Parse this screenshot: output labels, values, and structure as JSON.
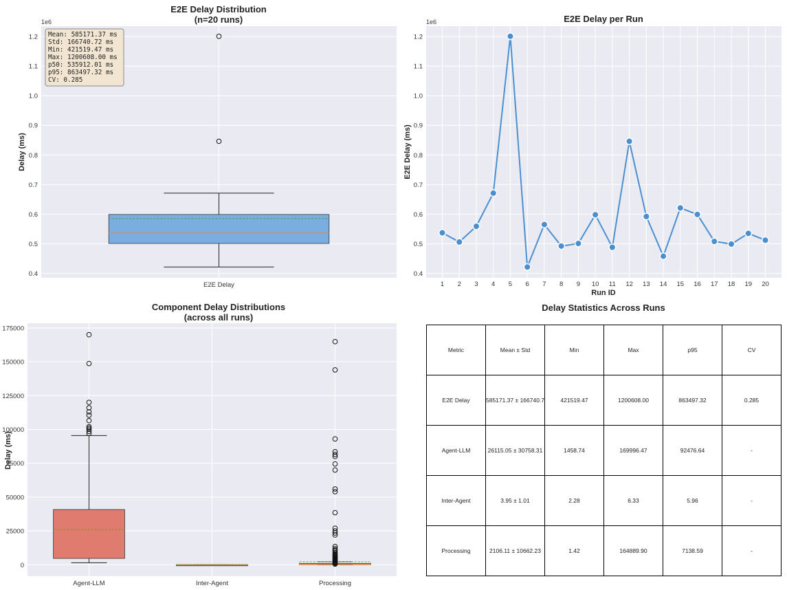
{
  "colors": {
    "plot_bg": "#eaeaf2",
    "grid": "#ffffff",
    "e2e_box": "#7aaee0",
    "llm_box": "#e07b6f",
    "median": "#e08a3c",
    "mean": "#5a9a4a",
    "line": "#4a90d0",
    "stats_box": "#f2e6d3"
  },
  "chart_data": [
    {
      "type": "box",
      "title": "E2E Delay Distribution",
      "subtitle": "(n=20 runs)",
      "ylabel": "Delay (ms)",
      "xlabel": "",
      "offset_label": "1e6",
      "ylim": [
        0.385,
        1.235
      ],
      "yticks": [
        0.4,
        0.5,
        0.6,
        0.7,
        0.8,
        0.9,
        1.0,
        1.1,
        1.2
      ],
      "ytick_labels": [
        "0.4",
        "0.5",
        "0.6",
        "0.7",
        "0.8",
        "0.9",
        "1.0",
        "1.1",
        "1.2"
      ],
      "categories": [
        "E2E Delay"
      ],
      "boxes": [
        {
          "name": "E2E Delay",
          "whisker_low": 0.4215,
          "q1": 0.501,
          "median": 0.536,
          "mean": 0.585,
          "q3": 0.599,
          "whisker_high": 0.671,
          "outliers": [
            0.846,
            1.2006
          ]
        }
      ],
      "stats_text": [
        "Mean: 585171.37 ms",
        "Std: 166740.72 ms",
        "Min: 421519.47 ms",
        "Max: 1200608.00 ms",
        "p50: 535912.01 ms",
        "p95: 863497.32 ms",
        "CV: 0.285"
      ]
    },
    {
      "type": "line",
      "title": "E2E Delay per Run",
      "xlabel": "Run ID",
      "ylabel": "E2E Delay (ms)",
      "offset_label": "1e6",
      "ylim": [
        0.385,
        1.235
      ],
      "yticks": [
        0.4,
        0.5,
        0.6,
        0.7,
        0.8,
        0.9,
        1.0,
        1.1,
        1.2
      ],
      "ytick_labels": [
        "0.4",
        "0.5",
        "0.6",
        "0.7",
        "0.8",
        "0.9",
        "1.0",
        "1.1",
        "1.2"
      ],
      "x": [
        1,
        2,
        3,
        4,
        5,
        6,
        7,
        8,
        9,
        10,
        11,
        12,
        13,
        14,
        15,
        16,
        17,
        18,
        19,
        20
      ],
      "y": [
        0.537,
        0.506,
        0.559,
        0.671,
        1.2006,
        0.4215,
        0.565,
        0.492,
        0.501,
        0.598,
        0.488,
        0.846,
        0.592,
        0.458,
        0.621,
        0.599,
        0.508,
        0.499,
        0.535,
        0.512
      ]
    },
    {
      "type": "box",
      "title": "Component Delay Distributions",
      "subtitle": "(across all runs)",
      "ylabel": "Delay (ms)",
      "xlabel": "",
      "ylim": [
        -8500,
        178500
      ],
      "yticks": [
        0,
        25000,
        50000,
        75000,
        100000,
        125000,
        150000,
        175000
      ],
      "ytick_labels": [
        "0",
        "25000",
        "50000",
        "75000",
        "100000",
        "125000",
        "150000",
        "175000"
      ],
      "categories": [
        "Agent-LLM",
        "Inter-Agent",
        "Processing"
      ],
      "boxes": [
        {
          "name": "Agent-LLM",
          "whisker_low": 1459,
          "q1": 4700,
          "median": 26000,
          "mean": 26115,
          "q3": 40800,
          "whisker_high": 95500,
          "outliers": [
            97000,
            98500,
            100000,
            101000,
            102000,
            106500,
            110500,
            113000,
            116000,
            120000,
            148700,
            169996
          ]
        },
        {
          "name": "Inter-Agent",
          "whisker_low": 2.28,
          "q1": 3.2,
          "median": 3.9,
          "mean": 3.95,
          "q3": 4.6,
          "whisker_high": 6.33,
          "outliers": []
        },
        {
          "name": "Processing",
          "whisker_low": 1.42,
          "q1": 50,
          "median": 200,
          "mean": 2106,
          "q3": 900,
          "whisker_high": 2200,
          "outliers": [
            500,
            1000,
            1500,
            2000,
            2500,
            3000,
            3500,
            4000,
            4500,
            5000,
            5500,
            6000,
            6500,
            7000,
            7500,
            8000,
            9000,
            10000,
            11000,
            12000,
            13500,
            22000,
            23500,
            25000,
            27000,
            38500,
            54000,
            56000,
            70000,
            74500,
            80000,
            81500,
            83500,
            93000,
            144000,
            164890
          ]
        }
      ]
    }
  ],
  "table": {
    "title": "Delay Statistics Across Runs",
    "headers": [
      "Metric",
      "Mean ± Std",
      "Min",
      "Max",
      "p95",
      "CV"
    ],
    "rows": [
      [
        "E2E Delay",
        "585171.37 ± 166740.72",
        "421519.47",
        "1200608.00",
        "863497.32",
        "0.285"
      ],
      [
        "Agent-LLM",
        "26115.05 ± 30758.31",
        "1458.74",
        "169996.47",
        "92476.64",
        "-"
      ],
      [
        "Inter-Agent",
        "3.95 ± 1.01",
        "2.28",
        "6.33",
        "5.96",
        "-"
      ],
      [
        "Processing",
        "2106.11 ± 10662.23",
        "1.42",
        "164889.90",
        "7138.59",
        "-"
      ]
    ]
  }
}
